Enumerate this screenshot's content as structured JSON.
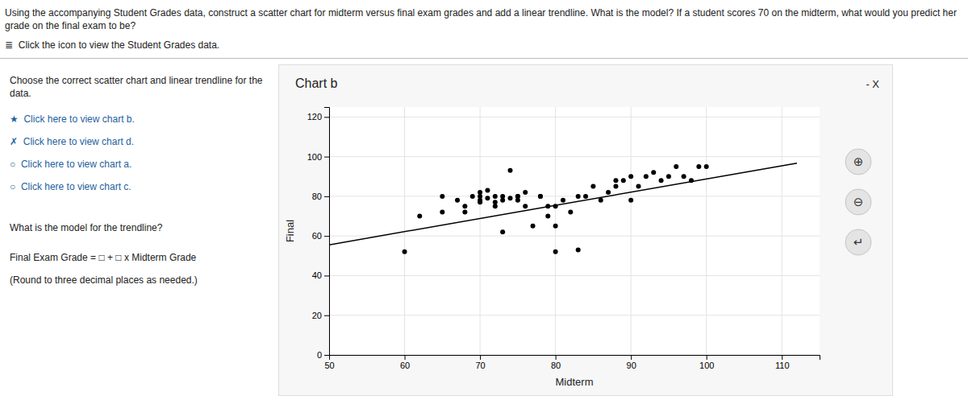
{
  "chart_data": {
    "type": "scatter",
    "title": "Chart b",
    "xlabel": "Midterm",
    "ylabel": "Final",
    "xlim": [
      50,
      115
    ],
    "ylim": [
      0,
      125
    ],
    "xticks": [
      50,
      60,
      70,
      80,
      90,
      100,
      110
    ],
    "yticks": [
      0,
      20,
      40,
      60,
      80,
      100,
      120
    ],
    "grid": true,
    "series": [
      {
        "type": "scatter",
        "color": "#000000",
        "x": [
          60,
          62,
          65,
          65,
          67,
          68,
          68,
          69,
          70,
          70,
          70,
          70,
          71,
          71,
          72,
          72,
          72,
          73,
          73,
          73,
          74,
          74,
          75,
          75,
          75,
          76,
          76,
          77,
          78,
          78,
          79,
          79,
          80,
          80,
          80,
          81,
          82,
          83,
          83,
          84,
          85,
          86,
          87,
          88,
          88,
          89,
          90,
          90,
          91,
          92,
          93,
          94,
          95,
          96,
          97,
          98,
          99,
          100
        ],
        "values": [
          52,
          70,
          72,
          80,
          78,
          75,
          72,
          80,
          77,
          80,
          82,
          78,
          79,
          83,
          77,
          75,
          80,
          78,
          80,
          62,
          79,
          93,
          80,
          78,
          80,
          82,
          75,
          65,
          80,
          80,
          75,
          70,
          65,
          52,
          75,
          78,
          72,
          80,
          53,
          80,
          85,
          78,
          82,
          85,
          88,
          88,
          90,
          78,
          85,
          90,
          92,
          88,
          90,
          95,
          90,
          88,
          95,
          95
        ]
      },
      {
        "type": "line",
        "color": "#000000",
        "x": [
          50,
          112
        ],
        "values": [
          55.525,
          96.693
        ]
      }
    ],
    "annotations": [
      "Using the accompanying Student Grades data, construct a scatter chart for midterm versus final exam grades and add a linear trendline. What is the model? If a student scores 70 on the midterm, what would you predict her grade on the final exam to be?",
      "≣  Click the icon to view the Student Grades data.",
      "Choose the correct scatter chart and linear trendline for the data.",
      "★  Click here to view chart b.",
      "✗  Click here to view chart d.",
      "○  Click here to view chart a.",
      "○  Click here to view chart c.",
      "What is the model for the trendline?",
      "Final Exam Grade = □ + □ x Midterm Grade",
      "(Round to three decimal places as needed.)",
      "- X",
      "⊕",
      "⊖",
      "↵"
    ]
  }
}
